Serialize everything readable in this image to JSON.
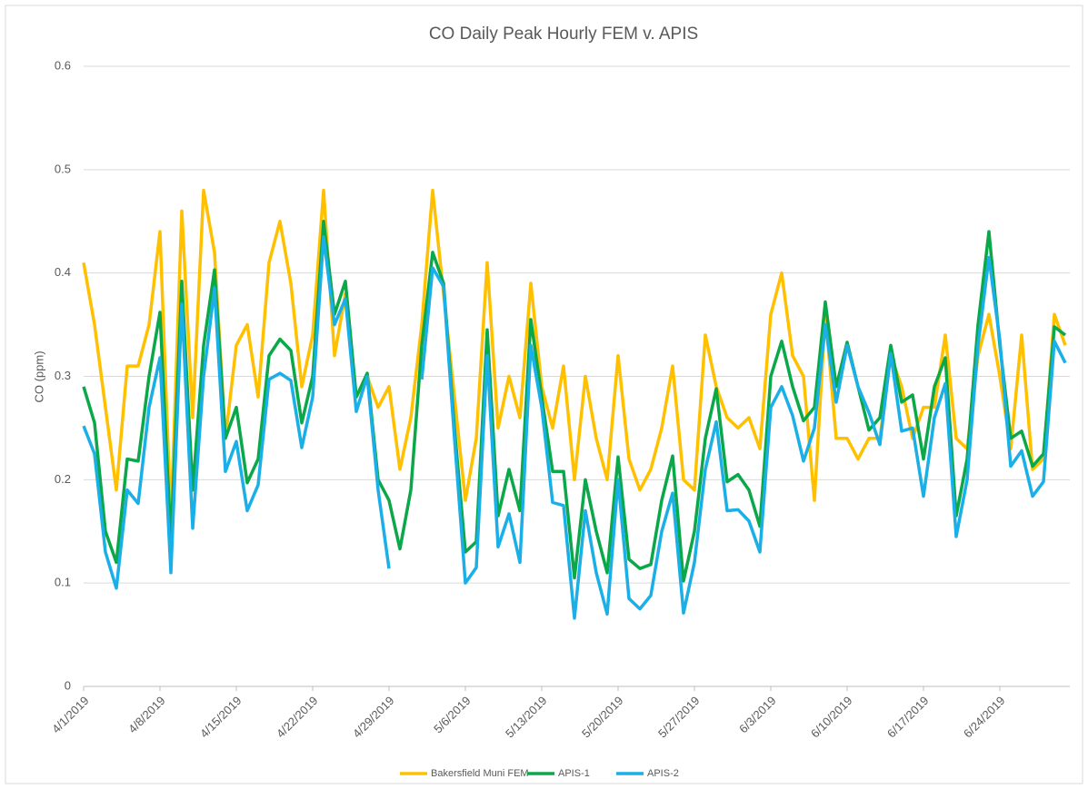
{
  "chart_data": {
    "type": "line",
    "title": "CO Daily Peak Hourly FEM v. APIS",
    "y_label": "CO (ppm)",
    "categories": [
      "4/1/2019",
      null,
      null,
      null,
      null,
      null,
      null,
      "4/8/2019",
      null,
      null,
      null,
      null,
      null,
      null,
      "4/15/2019",
      null,
      null,
      null,
      null,
      null,
      null,
      "4/22/2019",
      null,
      null,
      null,
      null,
      null,
      null,
      "4/29/2019",
      null,
      null,
      null,
      null,
      null,
      null,
      "5/6/2019",
      null,
      null,
      null,
      null,
      null,
      null,
      "5/13/2019",
      null,
      null,
      null,
      null,
      null,
      null,
      "5/20/2019",
      null,
      null,
      null,
      null,
      null,
      null,
      "5/27/2019",
      null,
      null,
      null,
      null,
      null,
      null,
      "6/3/2019",
      null,
      null,
      null,
      null,
      null,
      null,
      "6/10/2019",
      null,
      null,
      null,
      null,
      null,
      null,
      "6/17/2019",
      null,
      null,
      null,
      null,
      null,
      null,
      "6/24/2019",
      null,
      null,
      null,
      null,
      null,
      null
    ],
    "series": [
      {
        "name": "Bakersfield Muni FEM",
        "color": "#FFC000",
        "values": [
          0.41,
          0.35,
          0.27,
          0.19,
          0.31,
          0.31,
          0.35,
          0.44,
          0.16,
          0.46,
          0.26,
          0.48,
          0.42,
          0.24,
          0.33,
          0.35,
          0.28,
          0.41,
          0.45,
          0.39,
          0.29,
          0.34,
          0.48,
          0.32,
          0.38,
          0.28,
          0.3,
          0.27,
          0.29,
          0.21,
          0.26,
          0.35,
          0.48,
          0.38,
          0.28,
          0.18,
          0.24,
          0.41,
          0.25,
          0.3,
          0.26,
          0.39,
          0.29,
          0.25,
          0.31,
          0.2,
          0.3,
          0.24,
          0.2,
          0.32,
          0.22,
          0.19,
          0.21,
          0.25,
          0.31,
          0.2,
          0.19,
          0.34,
          0.29,
          0.26,
          0.25,
          0.26,
          0.23,
          0.36,
          0.4,
          0.32,
          0.3,
          0.18,
          0.36,
          0.24,
          0.24,
          0.22,
          0.24,
          0.24,
          0.32,
          0.29,
          0.24,
          0.27,
          0.27,
          0.34,
          0.24,
          0.23,
          0.32,
          0.36,
          0.3,
          0.23,
          0.34,
          0.21,
          0.22,
          0.36,
          0.33
        ]
      },
      {
        "name": "APIS-1",
        "color": "#0BA84A",
        "values": [
          0.29,
          0.255,
          0.15,
          0.12,
          0.22,
          0.218,
          0.3,
          0.362,
          0.14,
          0.392,
          0.19,
          0.33,
          0.403,
          0.24,
          0.27,
          0.197,
          0.22,
          0.32,
          0.336,
          0.325,
          0.255,
          0.3,
          0.45,
          0.36,
          0.392,
          0.28,
          0.303,
          0.2,
          0.18,
          0.133,
          0.19,
          0.33,
          0.42,
          0.39,
          0.25,
          0.13,
          0.14,
          0.345,
          0.165,
          0.21,
          0.17,
          0.355,
          0.28,
          0.208,
          0.208,
          0.105,
          0.2,
          0.15,
          0.11,
          0.222,
          0.123,
          0.114,
          0.118,
          0.18,
          0.223,
          0.102,
          0.15,
          0.24,
          0.288,
          0.198,
          0.205,
          0.19,
          0.155,
          0.3,
          0.334,
          0.29,
          0.257,
          0.27,
          0.372,
          0.29,
          0.333,
          0.29,
          0.248,
          0.26,
          0.33,
          0.275,
          0.282,
          0.22,
          0.29,
          0.318,
          0.165,
          0.22,
          0.35,
          0.44,
          0.33,
          0.24,
          0.247,
          0.213,
          0.225,
          0.348,
          0.34
        ]
      },
      {
        "name": "APIS-2",
        "color": "#1AAFE6",
        "values": [
          0.252,
          0.225,
          0.13,
          0.095,
          0.19,
          0.177,
          0.27,
          0.318,
          0.11,
          0.37,
          0.153,
          0.3,
          0.385,
          0.208,
          0.237,
          0.17,
          0.195,
          0.297,
          0.303,
          0.296,
          0.231,
          0.28,
          0.435,
          0.35,
          0.375,
          0.266,
          0.3,
          0.19,
          0.114,
          null,
          null,
          0.297,
          0.405,
          0.387,
          0.24,
          0.1,
          0.115,
          0.32,
          0.135,
          0.167,
          0.12,
          0.33,
          0.27,
          0.178,
          0.175,
          0.066,
          0.17,
          0.11,
          0.07,
          0.2,
          0.085,
          0.075,
          0.088,
          0.15,
          0.187,
          0.071,
          0.12,
          0.21,
          0.256,
          0.17,
          0.171,
          0.16,
          0.13,
          0.27,
          0.29,
          0.262,
          0.218,
          0.25,
          0.35,
          0.275,
          0.33,
          0.29,
          0.265,
          0.234,
          0.322,
          0.247,
          0.25,
          0.184,
          0.26,
          0.293,
          0.145,
          0.2,
          0.33,
          0.415,
          0.335,
          0.213,
          0.228,
          0.184,
          0.198,
          0.334,
          0.313
        ]
      }
    ],
    "ylim": [
      0,
      0.6
    ],
    "yticks": [
      0,
      0.1,
      0.2,
      0.3,
      0.4,
      0.5,
      0.6
    ],
    "grid": true,
    "legend": "bottom"
  }
}
